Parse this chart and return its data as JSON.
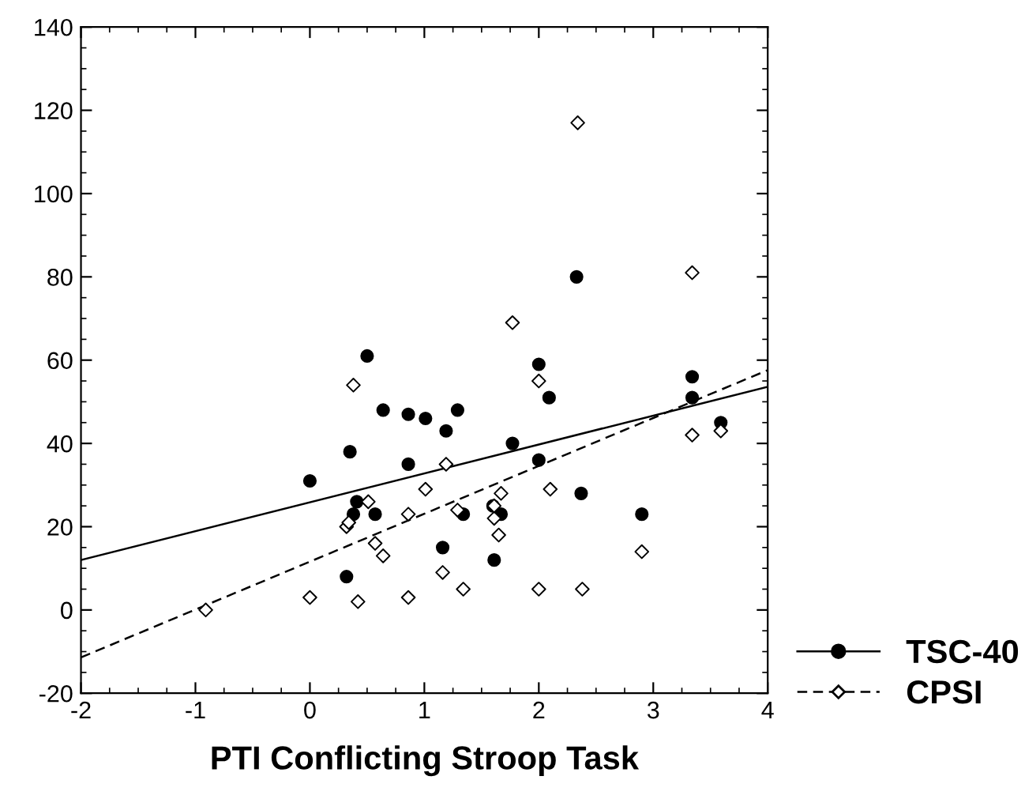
{
  "chart_data": {
    "type": "scatter",
    "xlabel": "PTI Conflicting Stroop Task",
    "xlim": [
      -2,
      4
    ],
    "xticks": [
      -2,
      -1,
      0,
      1,
      2,
      3,
      4
    ],
    "ylim": [
      -20,
      140
    ],
    "yticks": [
      -20,
      0,
      20,
      40,
      60,
      80,
      100,
      120,
      140
    ],
    "grid": false,
    "legend": "bottom right",
    "series": [
      {
        "name": "TSC-40",
        "marker": "circle",
        "color": "#000000",
        "x": [
          0,
          0.5,
          0.35,
          0.41,
          0.38,
          0.57,
          0.32,
          0.64,
          0.86,
          1.01,
          1.19,
          0.86,
          1.16,
          1.29,
          1.77,
          2.0,
          2.09,
          2.33,
          2.0,
          2.37,
          1.34,
          1.6,
          1.67,
          1.61,
          2.9,
          3.34,
          3.34,
          3.59
        ],
        "values": [
          31,
          61,
          38,
          26,
          23,
          23,
          8,
          48,
          47,
          46,
          43,
          35,
          15,
          48,
          40,
          59,
          51,
          80,
          36,
          28,
          23,
          25,
          23,
          12,
          23,
          56,
          51,
          45
        ]
      },
      {
        "type": "line",
        "line_style": "solid",
        "color": "#000000",
        "x": [
          -2,
          4
        ],
        "values": [
          12,
          53.6
        ]
      },
      {
        "name": "CPSI",
        "marker": "diamond",
        "color": "#000000",
        "x": [
          0.38,
          0.51,
          0.32,
          0.34,
          0.57,
          0.64,
          0,
          0.42,
          0.86,
          1.01,
          0.86,
          1.19,
          1.16,
          -0.91,
          1.29,
          1.77,
          3.34,
          2.34,
          2.0,
          2.1,
          1.67,
          1.61,
          1.61,
          1.65,
          1.34,
          2.0,
          2.38,
          2.9,
          3.34,
          3.59
        ],
        "values": [
          54,
          26,
          20,
          21,
          16,
          13,
          3,
          2,
          3,
          29,
          23,
          35,
          9,
          0,
          24,
          69,
          81,
          117,
          55,
          29,
          28,
          22,
          25,
          18,
          5,
          5,
          5,
          14,
          42,
          43
        ]
      },
      {
        "type": "line",
        "line_style": "dashed",
        "color": "#000000",
        "x": [
          -2,
          4
        ],
        "values": [
          -11.4,
          57.6
        ]
      }
    ]
  }
}
